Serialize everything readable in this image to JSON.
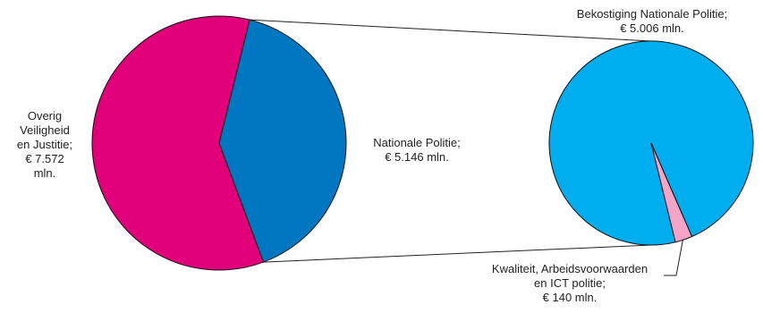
{
  "chart_data": [
    {
      "type": "pie",
      "title": "",
      "slices": [
        {
          "label_lines": [
            "Overig",
            "Veiligheid",
            "en Justitie;",
            "€ 7.572",
            "mln."
          ],
          "value": 7572,
          "color": "#e2007a"
        },
        {
          "label_lines": [
            "Nationale Politie;",
            "€ 5.146 mln."
          ],
          "value": 5146,
          "color": "#0077c0"
        }
      ]
    },
    {
      "type": "pie",
      "title": "",
      "slices": [
        {
          "label_lines": [
            "Bekostiging Nationale Politie;",
            "€ 5.006 mln."
          ],
          "value": 5006,
          "color": "#00aeef"
        },
        {
          "label_lines": [
            "Kwaliteit, Arbeidsvoorwaarden",
            "en ICT politie;",
            "€ 140 mln."
          ],
          "value": 140,
          "color": "#f5a3c7"
        }
      ]
    }
  ],
  "colors": {
    "connector": "#222222",
    "slice_edge": "#111111"
  }
}
